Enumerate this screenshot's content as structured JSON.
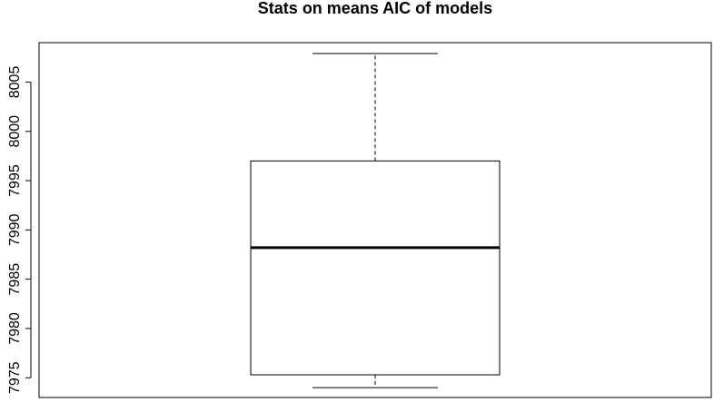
{
  "chart_data": {
    "type": "boxplot",
    "title": "Stats on means AIC of models",
    "xlabel": "",
    "ylabel": "",
    "ylim": [
      7973,
      8009
    ],
    "yticks": [
      7975,
      7980,
      7985,
      7990,
      7995,
      8000,
      8005
    ],
    "box": {
      "whisker_low": 7974.0,
      "q1": 7975.3,
      "median": 7988.2,
      "q3": 7997.0,
      "whisker_high": 8007.9
    }
  }
}
